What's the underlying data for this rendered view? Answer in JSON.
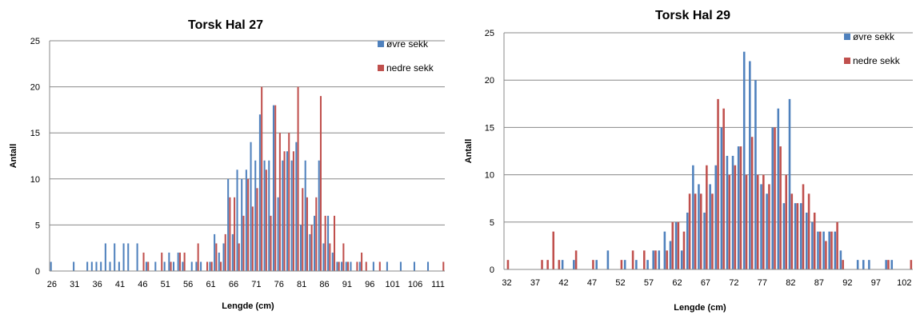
{
  "colors": {
    "ovre": "#4F81BD",
    "nedre": "#C0504D",
    "grid": "#888888",
    "axis": "#888888"
  },
  "chart_data": [
    {
      "type": "bar",
      "title": "Torsk Hal 27",
      "xlabel": "Lengde (cm)",
      "ylabel": "Antall",
      "ylim": [
        0,
        25
      ],
      "yticks": [
        "0",
        "5",
        "10",
        "15",
        "20",
        "25"
      ],
      "x_range": [
        26,
        112
      ],
      "xticks": [
        "26",
        "31",
        "36",
        "41",
        "46",
        "51",
        "56",
        "61",
        "66",
        "71",
        "76",
        "81",
        "86",
        "91",
        "96",
        "101",
        "106",
        "111"
      ],
      "grid": "horizontal",
      "legend_position": "top-right",
      "series": [
        {
          "name": "øvre sekk",
          "color_key": "ovre",
          "points": [
            [
              26,
              1
            ],
            [
              31,
              1
            ],
            [
              34,
              1
            ],
            [
              35,
              1
            ],
            [
              36,
              1
            ],
            [
              37,
              1
            ],
            [
              38,
              3
            ],
            [
              39,
              1
            ],
            [
              40,
              3
            ],
            [
              41,
              1
            ],
            [
              42,
              3
            ],
            [
              43,
              3
            ],
            [
              45,
              3
            ],
            [
              47,
              1
            ],
            [
              49,
              1
            ],
            [
              51,
              1
            ],
            [
              52,
              2
            ],
            [
              53,
              1
            ],
            [
              54,
              2
            ],
            [
              55,
              1
            ],
            [
              57,
              1
            ],
            [
              58,
              1
            ],
            [
              59,
              1
            ],
            [
              61,
              1
            ],
            [
              62,
              4
            ],
            [
              63,
              2
            ],
            [
              64,
              3
            ],
            [
              65,
              10
            ],
            [
              66,
              4
            ],
            [
              67,
              11
            ],
            [
              68,
              10
            ],
            [
              69,
              11
            ],
            [
              70,
              14
            ],
            [
              71,
              12
            ],
            [
              72,
              17
            ],
            [
              73,
              12
            ],
            [
              74,
              12
            ],
            [
              75,
              18
            ],
            [
              76,
              8
            ],
            [
              77,
              12
            ],
            [
              78,
              13
            ],
            [
              79,
              12
            ],
            [
              80,
              14
            ],
            [
              81,
              5
            ],
            [
              82,
              12
            ],
            [
              83,
              4
            ],
            [
              84,
              6
            ],
            [
              85,
              12
            ],
            [
              86,
              3
            ],
            [
              87,
              6
            ],
            [
              88,
              2
            ],
            [
              89,
              1
            ],
            [
              90,
              1
            ],
            [
              91,
              1
            ],
            [
              92,
              1
            ],
            [
              94,
              1
            ],
            [
              97,
              1
            ],
            [
              100,
              1
            ],
            [
              103,
              1
            ],
            [
              106,
              1
            ],
            [
              109,
              1
            ]
          ]
        },
        {
          "name": "nedre sekk",
          "color_key": "nedre",
          "points": [
            [
              46,
              2
            ],
            [
              47,
              1
            ],
            [
              50,
              2
            ],
            [
              52,
              1
            ],
            [
              54,
              2
            ],
            [
              55,
              2
            ],
            [
              58,
              3
            ],
            [
              60,
              1
            ],
            [
              61,
              1
            ],
            [
              62,
              3
            ],
            [
              63,
              1
            ],
            [
              64,
              4
            ],
            [
              65,
              8
            ],
            [
              66,
              8
            ],
            [
              67,
              3
            ],
            [
              68,
              6
            ],
            [
              69,
              10
            ],
            [
              70,
              7
            ],
            [
              71,
              9
            ],
            [
              72,
              20
            ],
            [
              73,
              11
            ],
            [
              74,
              6
            ],
            [
              75,
              18
            ],
            [
              76,
              15
            ],
            [
              77,
              13
            ],
            [
              78,
              15
            ],
            [
              79,
              13
            ],
            [
              80,
              20
            ],
            [
              81,
              9
            ],
            [
              82,
              8
            ],
            [
              83,
              5
            ],
            [
              84,
              8
            ],
            [
              85,
              19
            ],
            [
              86,
              6
            ],
            [
              87,
              3
            ],
            [
              88,
              6
            ],
            [
              89,
              1
            ],
            [
              90,
              3
            ],
            [
              91,
              1
            ],
            [
              93,
              1
            ],
            [
              94,
              2
            ],
            [
              95,
              1
            ],
            [
              98,
              1
            ],
            [
              112,
              1
            ]
          ]
        }
      ]
    },
    {
      "type": "bar",
      "title": "Torsk Hal 29",
      "xlabel": "Lengde (cm)",
      "ylabel": "Antall",
      "ylim": [
        0,
        25
      ],
      "yticks": [
        "0",
        "5",
        "10",
        "15",
        "20",
        "25"
      ],
      "x_range": [
        32,
        103
      ],
      "xticks": [
        "32",
        "37",
        "42",
        "47",
        "52",
        "57",
        "62",
        "67",
        "72",
        "77",
        "82",
        "87",
        "92",
        "97",
        "102"
      ],
      "grid": "horizontal",
      "legend_position": "top-right",
      "series": [
        {
          "name": "øvre sekk",
          "color_key": "ovre",
          "points": [
            [
              42,
              1
            ],
            [
              44,
              1
            ],
            [
              48,
              1
            ],
            [
              50,
              2
            ],
            [
              53,
              1
            ],
            [
              55,
              1
            ],
            [
              57,
              1
            ],
            [
              58,
              2
            ],
            [
              59,
              2
            ],
            [
              60,
              4
            ],
            [
              61,
              3
            ],
            [
              62,
              5
            ],
            [
              63,
              2
            ],
            [
              64,
              6
            ],
            [
              65,
              11
            ],
            [
              66,
              9
            ],
            [
              67,
              6
            ],
            [
              68,
              9
            ],
            [
              69,
              11
            ],
            [
              70,
              15
            ],
            [
              71,
              12
            ],
            [
              72,
              12
            ],
            [
              73,
              13
            ],
            [
              74,
              23
            ],
            [
              75,
              22
            ],
            [
              76,
              20
            ],
            [
              77,
              9
            ],
            [
              78,
              8
            ],
            [
              79,
              15
            ],
            [
              80,
              17
            ],
            [
              81,
              7
            ],
            [
              82,
              18
            ],
            [
              83,
              7
            ],
            [
              84,
              7
            ],
            [
              85,
              6
            ],
            [
              86,
              5
            ],
            [
              87,
              4
            ],
            [
              88,
              4
            ],
            [
              89,
              4
            ],
            [
              90,
              4
            ],
            [
              91,
              2
            ],
            [
              94,
              1
            ],
            [
              95,
              1
            ],
            [
              96,
              1
            ],
            [
              99,
              1
            ],
            [
              100,
              1
            ]
          ]
        },
        {
          "name": "nedre sekk",
          "color_key": "nedre",
          "points": [
            [
              32,
              1
            ],
            [
              38,
              1
            ],
            [
              39,
              1
            ],
            [
              40,
              4
            ],
            [
              41,
              1
            ],
            [
              44,
              2
            ],
            [
              47,
              1
            ],
            [
              52,
              1
            ],
            [
              54,
              2
            ],
            [
              56,
              2
            ],
            [
              58,
              2
            ],
            [
              60,
              2
            ],
            [
              61,
              5
            ],
            [
              62,
              5
            ],
            [
              63,
              4
            ],
            [
              64,
              8
            ],
            [
              65,
              8
            ],
            [
              66,
              8
            ],
            [
              67,
              11
            ],
            [
              68,
              8
            ],
            [
              69,
              18
            ],
            [
              70,
              17
            ],
            [
              71,
              10
            ],
            [
              72,
              11
            ],
            [
              73,
              13
            ],
            [
              74,
              10
            ],
            [
              75,
              14
            ],
            [
              76,
              10
            ],
            [
              77,
              10
            ],
            [
              78,
              9
            ],
            [
              79,
              15
            ],
            [
              80,
              13
            ],
            [
              81,
              10
            ],
            [
              82,
              8
            ],
            [
              83,
              7
            ],
            [
              84,
              9
            ],
            [
              85,
              8
            ],
            [
              86,
              6
            ],
            [
              87,
              4
            ],
            [
              88,
              3
            ],
            [
              89,
              4
            ],
            [
              90,
              5
            ],
            [
              91,
              1
            ],
            [
              99,
              1
            ],
            [
              103,
              1
            ]
          ]
        }
      ]
    }
  ]
}
